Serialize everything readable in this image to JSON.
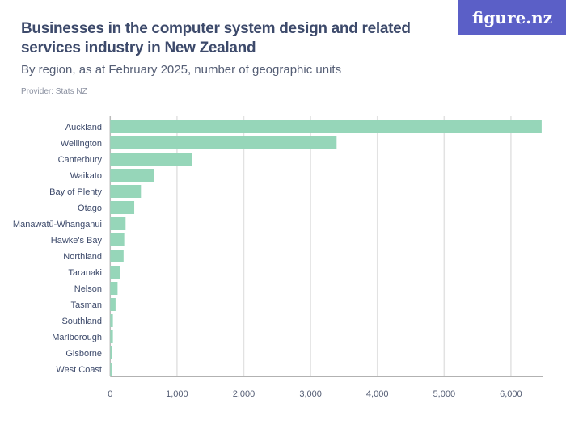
{
  "header": {
    "title": "Businesses in the computer system design and related services industry in New Zealand",
    "subtitle": "By region, as at February 2025, number of geographic units",
    "provider": "Provider: Stats NZ",
    "logo": "figure.nz"
  },
  "chart_data": {
    "type": "bar",
    "orientation": "horizontal",
    "categories": [
      "Auckland",
      "Wellington",
      "Canterbury",
      "Waikato",
      "Bay of Plenty",
      "Otago",
      "Manawatū-Whanganui",
      "Hawke's Bay",
      "Northland",
      "Taranaki",
      "Nelson",
      "Tasman",
      "Southland",
      "Marlborough",
      "Gisborne",
      "West Coast"
    ],
    "values": [
      6460,
      3390,
      1220,
      660,
      460,
      360,
      230,
      210,
      200,
      150,
      110,
      80,
      40,
      40,
      30,
      20
    ],
    "xlim": [
      0,
      6500
    ],
    "xticks": [
      0,
      1000,
      2000,
      3000,
      4000,
      5000,
      6000
    ],
    "xtick_labels": [
      "0",
      "1,000",
      "2,000",
      "3,000",
      "4,000",
      "5,000",
      "6,000"
    ],
    "grid": true,
    "bar_color": "#96d6b9"
  }
}
